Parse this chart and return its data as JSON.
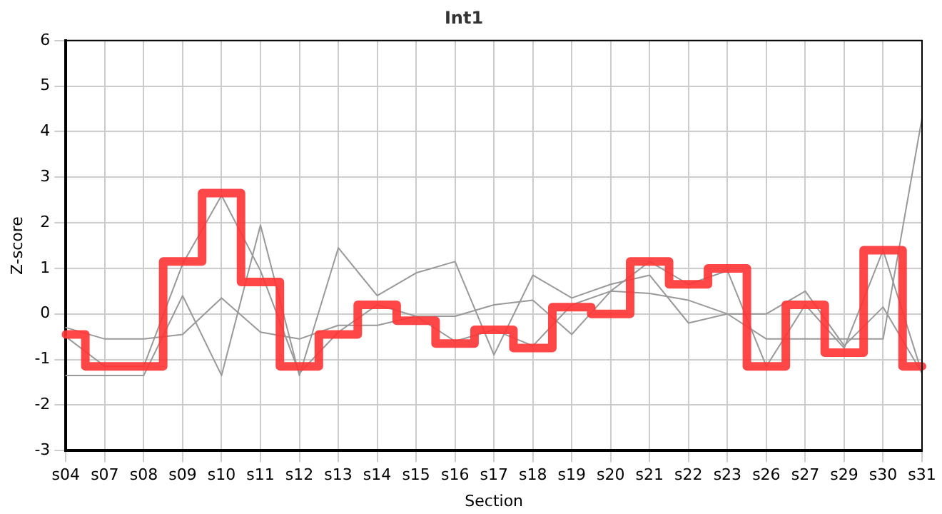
{
  "chart_data": {
    "type": "line",
    "title": "Int1",
    "xlabel": "Section",
    "ylabel": "Z-score",
    "categories": [
      "s04",
      "s07",
      "s08",
      "s09",
      "s10",
      "s11",
      "s12",
      "s13",
      "s14",
      "s15",
      "s16",
      "s17",
      "s18",
      "s19",
      "s20",
      "s21",
      "s22",
      "s23",
      "s26",
      "s27",
      "s29",
      "s30",
      "s31"
    ],
    "series": [
      {
        "type": "line",
        "color": "#999999",
        "values": [
          -1.35,
          -1.35,
          -1.35,
          0.4,
          -1.35,
          1.95,
          -1.35,
          1.45,
          0.4,
          0.9,
          1.15,
          -0.9,
          0.85,
          0.35,
          0.65,
          0.85,
          -0.2,
          0.0,
          0.0,
          0.5,
          -0.7,
          0.15,
          -1.3
        ]
      },
      {
        "type": "line",
        "color": "#999999",
        "values": [
          -0.5,
          -1.15,
          -1.15,
          1.1,
          2.6,
          0.95,
          -1.3,
          -0.4,
          0.2,
          -0.05,
          -0.6,
          -0.35,
          -0.7,
          0.2,
          0.5,
          1.15,
          0.65,
          0.95,
          -1.15,
          0.2,
          -0.75,
          1.4,
          -1.3
        ]
      },
      {
        "type": "line",
        "color": "#999999",
        "values": [
          -0.3,
          -0.55,
          -0.55,
          -0.45,
          0.35,
          -0.4,
          -0.55,
          -0.25,
          -0.25,
          -0.05,
          -0.05,
          0.2,
          0.3,
          -0.45,
          0.5,
          0.45,
          0.3,
          0.0,
          -0.55,
          -0.55,
          -0.55,
          -0.55,
          4.3
        ]
      },
      {
        "type": "step",
        "color": "#ff3333",
        "values": [
          -0.45,
          -1.15,
          -1.15,
          1.15,
          2.65,
          0.7,
          -1.15,
          -0.45,
          0.2,
          -0.15,
          -0.65,
          -0.35,
          -0.75,
          0.15,
          0.0,
          1.15,
          0.65,
          1.0,
          -1.15,
          0.2,
          -0.85,
          1.4,
          -1.15
        ]
      }
    ],
    "ylim": [
      -3,
      6
    ],
    "yticks": [
      -3,
      -2,
      -1,
      0,
      1,
      2,
      3,
      4,
      5,
      6
    ],
    "grid": true,
    "legend": false,
    "marker": "none",
    "line_style": "solid"
  }
}
